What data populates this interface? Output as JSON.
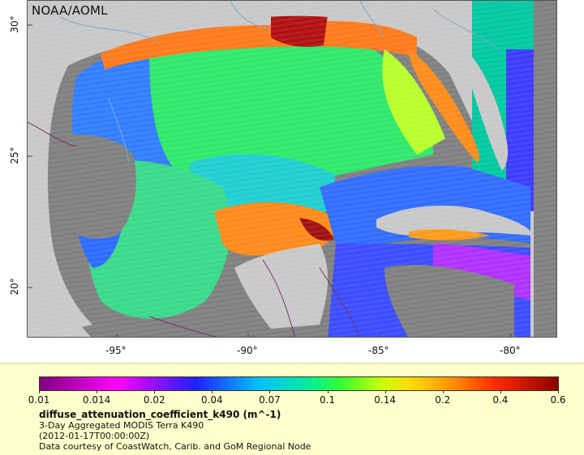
{
  "map": {
    "watermark": "NOAA/AOML",
    "lat_labels": [
      "30°",
      "25°",
      "20°"
    ],
    "lon_labels": [
      "-95°",
      "-90°",
      "-85°",
      "-80°"
    ],
    "colors": {
      "land": "#c8c8c8",
      "no_data": "#7f7f7f",
      "rivers": "#7aa7d6",
      "borders": "#7a2e6e"
    }
  },
  "legend": {
    "colorbar_labels": [
      "0.01",
      "0.014",
      "0.02",
      "0.04",
      "0.07",
      "0.1",
      "0.14",
      "0.2",
      "0.4",
      "0.6"
    ],
    "variable": "diffuse_attenuation_coefficient_k490 (m^-1)",
    "product": "3-Day Aggregated MODIS Terra K490",
    "timestamp": "(2012-01-17T00:00:00Z)",
    "credit": "Data courtesy of CoastWatch, Carib. and GoM Regional Node"
  }
}
